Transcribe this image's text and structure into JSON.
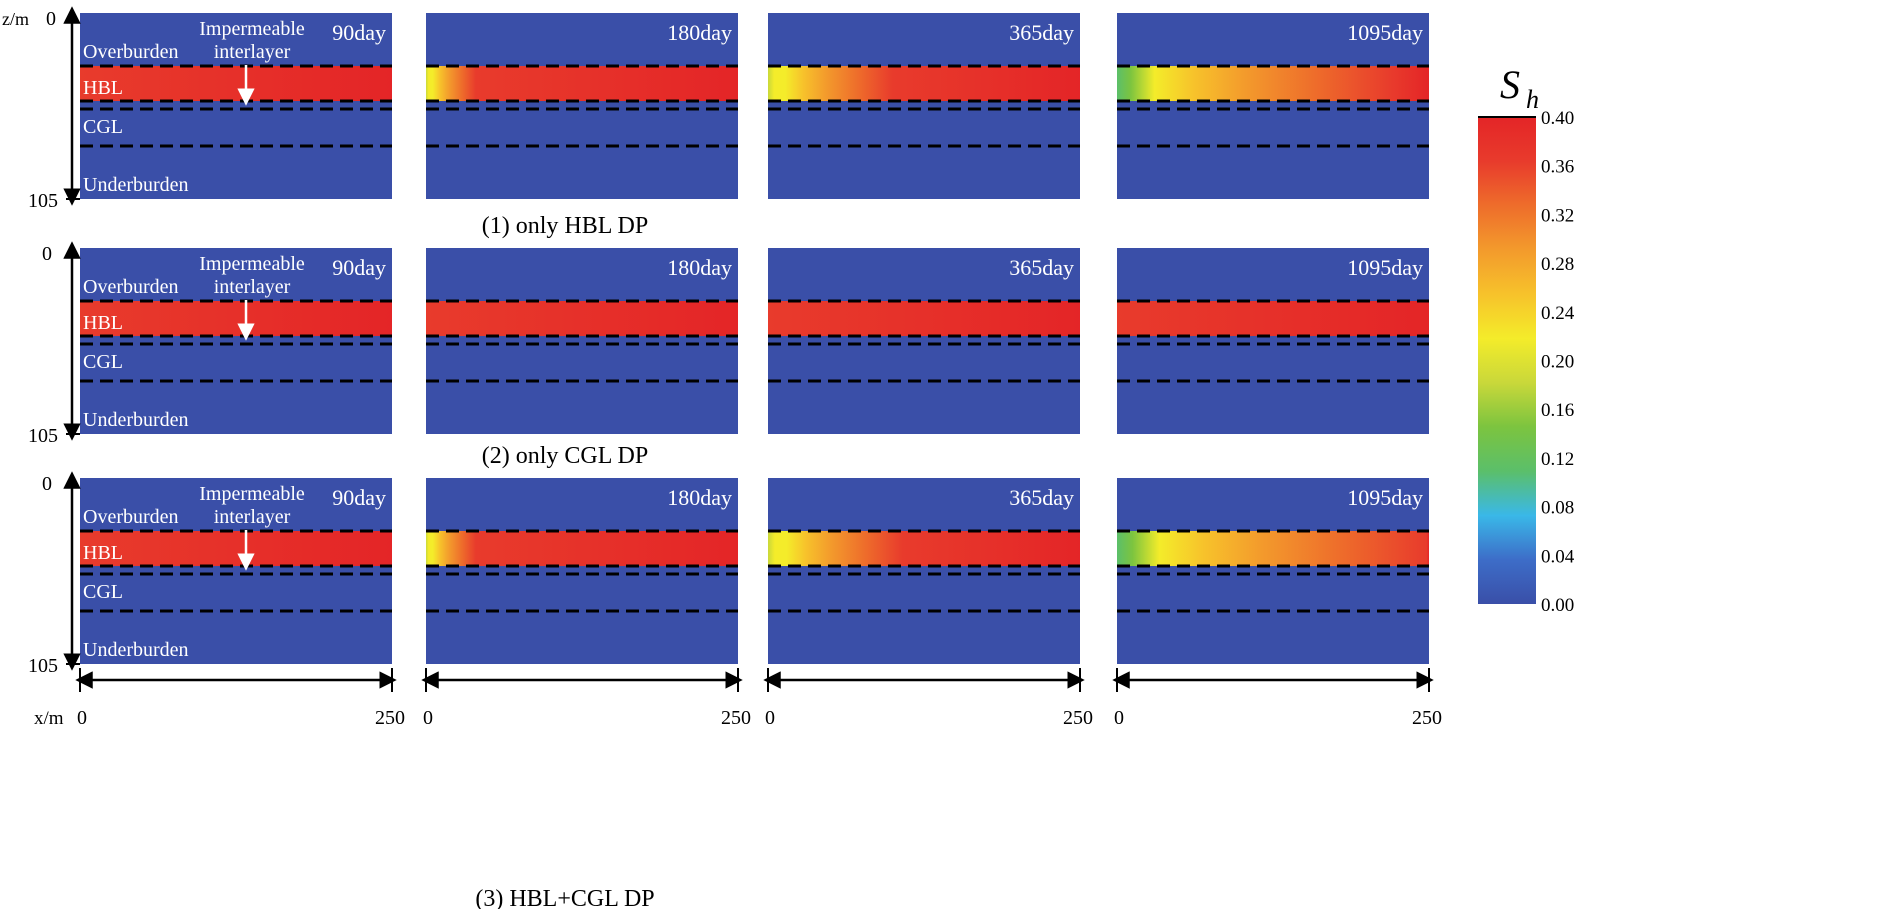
{
  "chart_data": {
    "type": "heatmap",
    "colorbar": {
      "title": "S",
      "title_subscript": "h",
      "range": [
        0.0,
        0.4
      ],
      "ticks": [
        "0.40",
        "0.36",
        "0.32",
        "0.28",
        "0.24",
        "0.20",
        "0.16",
        "0.12",
        "0.08",
        "0.04",
        "0.00"
      ],
      "colors": [
        "#3A4FA8",
        "#3D6DC8",
        "#3AB8E8",
        "#5BBF6A",
        "#7CC43F",
        "#C9D83A",
        "#F4EC2A",
        "#F7C22B",
        "#F39A2C",
        "#EE6D2B",
        "#E83B2C",
        "#E42527"
      ]
    },
    "axes": {
      "z_label": "z/m",
      "z_min": "0",
      "z_max": "105",
      "x_label": "x/m",
      "x_min": "0",
      "x_max": "250"
    },
    "layers": {
      "overburden": "Overburden",
      "hbl": "HBL",
      "cgl": "CGL",
      "underburden": "Underburden",
      "interlayer_line1": "Impermeable",
      "interlayer_line2": "interlayer"
    },
    "rows": [
      {
        "caption": "(1) only HBL DP",
        "panels": [
          {
            "label": "90day",
            "dissociation_front_fraction": 0.0
          },
          {
            "label": "180day",
            "dissociation_front_fraction": 0.1
          },
          {
            "label": "365day",
            "dissociation_front_fraction": 0.25
          },
          {
            "label": "1095day",
            "dissociation_front_fraction": 0.55
          }
        ]
      },
      {
        "caption": "(2) only CGL DP",
        "panels": [
          {
            "label": "90day",
            "dissociation_front_fraction": 0.0
          },
          {
            "label": "180day",
            "dissociation_front_fraction": 0.0
          },
          {
            "label": "365day",
            "dissociation_front_fraction": 0.0
          },
          {
            "label": "1095day",
            "dissociation_front_fraction": 0.0
          }
        ]
      },
      {
        "caption": "(3) HBL+CGL DP",
        "panels": [
          {
            "label": "90day",
            "dissociation_front_fraction": 0.0
          },
          {
            "label": "180day",
            "dissociation_front_fraction": 0.1
          },
          {
            "label": "365day",
            "dissociation_front_fraction": 0.27
          },
          {
            "label": "1095day",
            "dissociation_front_fraction": 0.62
          }
        ]
      }
    ]
  }
}
